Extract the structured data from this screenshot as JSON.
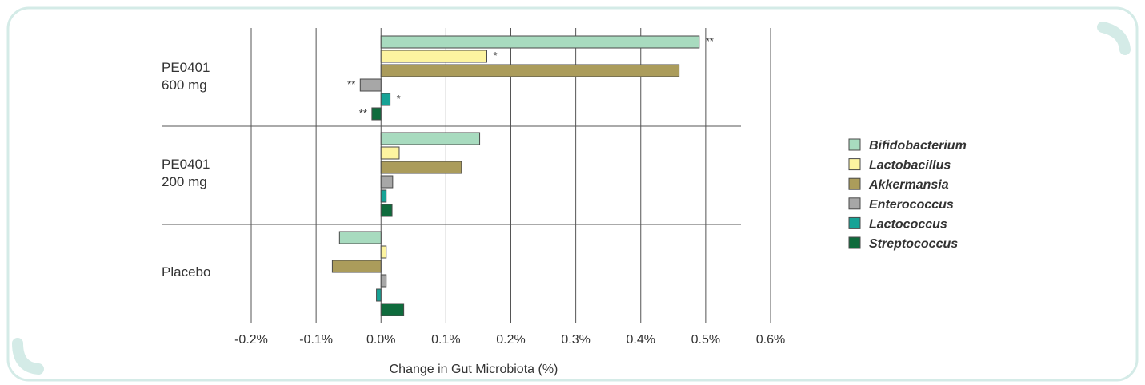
{
  "colors": {
    "frame": "#d4ebe7",
    "grid": "#555555",
    "bar_stroke": "#4a4a4a"
  },
  "chart_data": {
    "type": "bar",
    "orientation": "horizontal",
    "title": "",
    "xlabel": "Change in Gut Microbiota (%)",
    "ylabel": "",
    "xlim": [
      -0.2,
      0.6
    ],
    "x_tick_labels": [
      "-0.2%",
      "-0.1%",
      "0.0%",
      "0.1%",
      "0.2%",
      "0.3%",
      "0.4%",
      "0.5%",
      "0.6%"
    ],
    "grid": true,
    "legend_position": "right",
    "groups": [
      {
        "label_lines": [
          "PE0401",
          "600 mg"
        ]
      },
      {
        "label_lines": [
          "PE0401",
          "200 mg"
        ]
      },
      {
        "label_lines": [
          "Placebo"
        ]
      }
    ],
    "series": [
      {
        "name": "Bifidobacterium",
        "color": "#a8dbbf",
        "values": [
          0.49,
          0.152,
          -0.064
        ],
        "significance": [
          "**",
          "",
          ""
        ]
      },
      {
        "name": "Lactobacillus",
        "color": "#fdf4a0",
        "values": [
          0.163,
          0.028,
          0.008
        ],
        "significance": [
          "*",
          "",
          ""
        ]
      },
      {
        "name": "Akkermansia",
        "color": "#ab9c5b",
        "values": [
          0.459,
          0.124,
          -0.075
        ],
        "significance": [
          "",
          "",
          ""
        ]
      },
      {
        "name": "Enterococcus",
        "color": "#a7a7a7",
        "values": [
          -0.032,
          0.018,
          0.008
        ],
        "significance": [
          "**",
          "",
          ""
        ]
      },
      {
        "name": "Lactococcus",
        "color": "#17a396",
        "values": [
          0.014,
          0.008,
          -0.007
        ],
        "significance": [
          "*",
          "",
          ""
        ]
      },
      {
        "name": "Streptococcus",
        "color": "#0e6b3c",
        "values": [
          -0.014,
          0.017,
          0.035
        ],
        "significance": [
          "**",
          "",
          ""
        ]
      }
    ]
  }
}
